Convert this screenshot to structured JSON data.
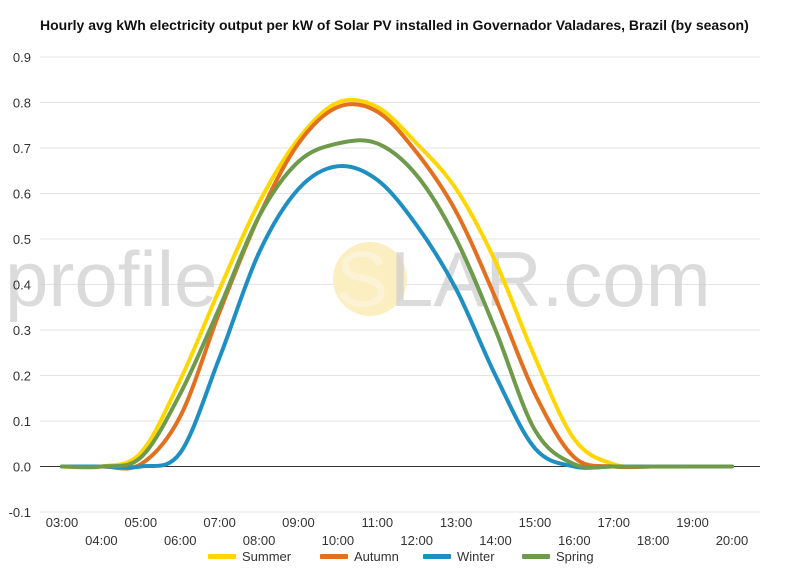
{
  "title": "Hourly avg kWh electricity output per kW of Solar PV installed in Governador Valadares, Brazil (by season)",
  "watermark": {
    "left": "profile",
    "sun_letter": "S",
    "right": "LAR.com",
    "sun_color": "#fbeec1"
  },
  "chart_data": {
    "type": "line",
    "title": "Hourly avg kWh electricity output per kW of Solar PV installed in Governador Valadares, Brazil (by season)",
    "xlabel": "",
    "ylabel": "",
    "ylim": [
      -0.1,
      0.9
    ],
    "yticks": [
      "-0.1",
      "0.0",
      "0.1",
      "0.2",
      "0.3",
      "0.4",
      "0.5",
      "0.6",
      "0.7",
      "0.8",
      "0.9"
    ],
    "categories": [
      "03:00",
      "04:00",
      "05:00",
      "06:00",
      "07:00",
      "08:00",
      "09:00",
      "10:00",
      "11:00",
      "12:00",
      "13:00",
      "14:00",
      "15:00",
      "16:00",
      "17:00",
      "18:00",
      "19:00",
      "20:00"
    ],
    "grid": true,
    "legend_position": "bottom",
    "series": [
      {
        "name": "Summer",
        "color": "#ffd700",
        "values": [
          0,
          0,
          0.03,
          0.19,
          0.39,
          0.58,
          0.72,
          0.8,
          0.79,
          0.71,
          0.61,
          0.45,
          0.24,
          0.06,
          0.005,
          0,
          0,
          0
        ]
      },
      {
        "name": "Autumn",
        "color": "#e3701e",
        "values": [
          0,
          0,
          0.005,
          0.11,
          0.34,
          0.55,
          0.71,
          0.79,
          0.78,
          0.69,
          0.56,
          0.37,
          0.16,
          0.02,
          0,
          0,
          0,
          0
        ]
      },
      {
        "name": "Winter",
        "color": "#1e8fc2",
        "values": [
          0,
          0,
          0,
          0.03,
          0.24,
          0.47,
          0.61,
          0.66,
          0.63,
          0.53,
          0.39,
          0.2,
          0.04,
          0,
          0,
          0,
          0,
          0
        ]
      },
      {
        "name": "Spring",
        "color": "#6e9a4c",
        "values": [
          0,
          0,
          0.02,
          0.16,
          0.35,
          0.55,
          0.67,
          0.71,
          0.71,
          0.64,
          0.5,
          0.3,
          0.08,
          0.005,
          0,
          0,
          0,
          0
        ]
      }
    ]
  }
}
